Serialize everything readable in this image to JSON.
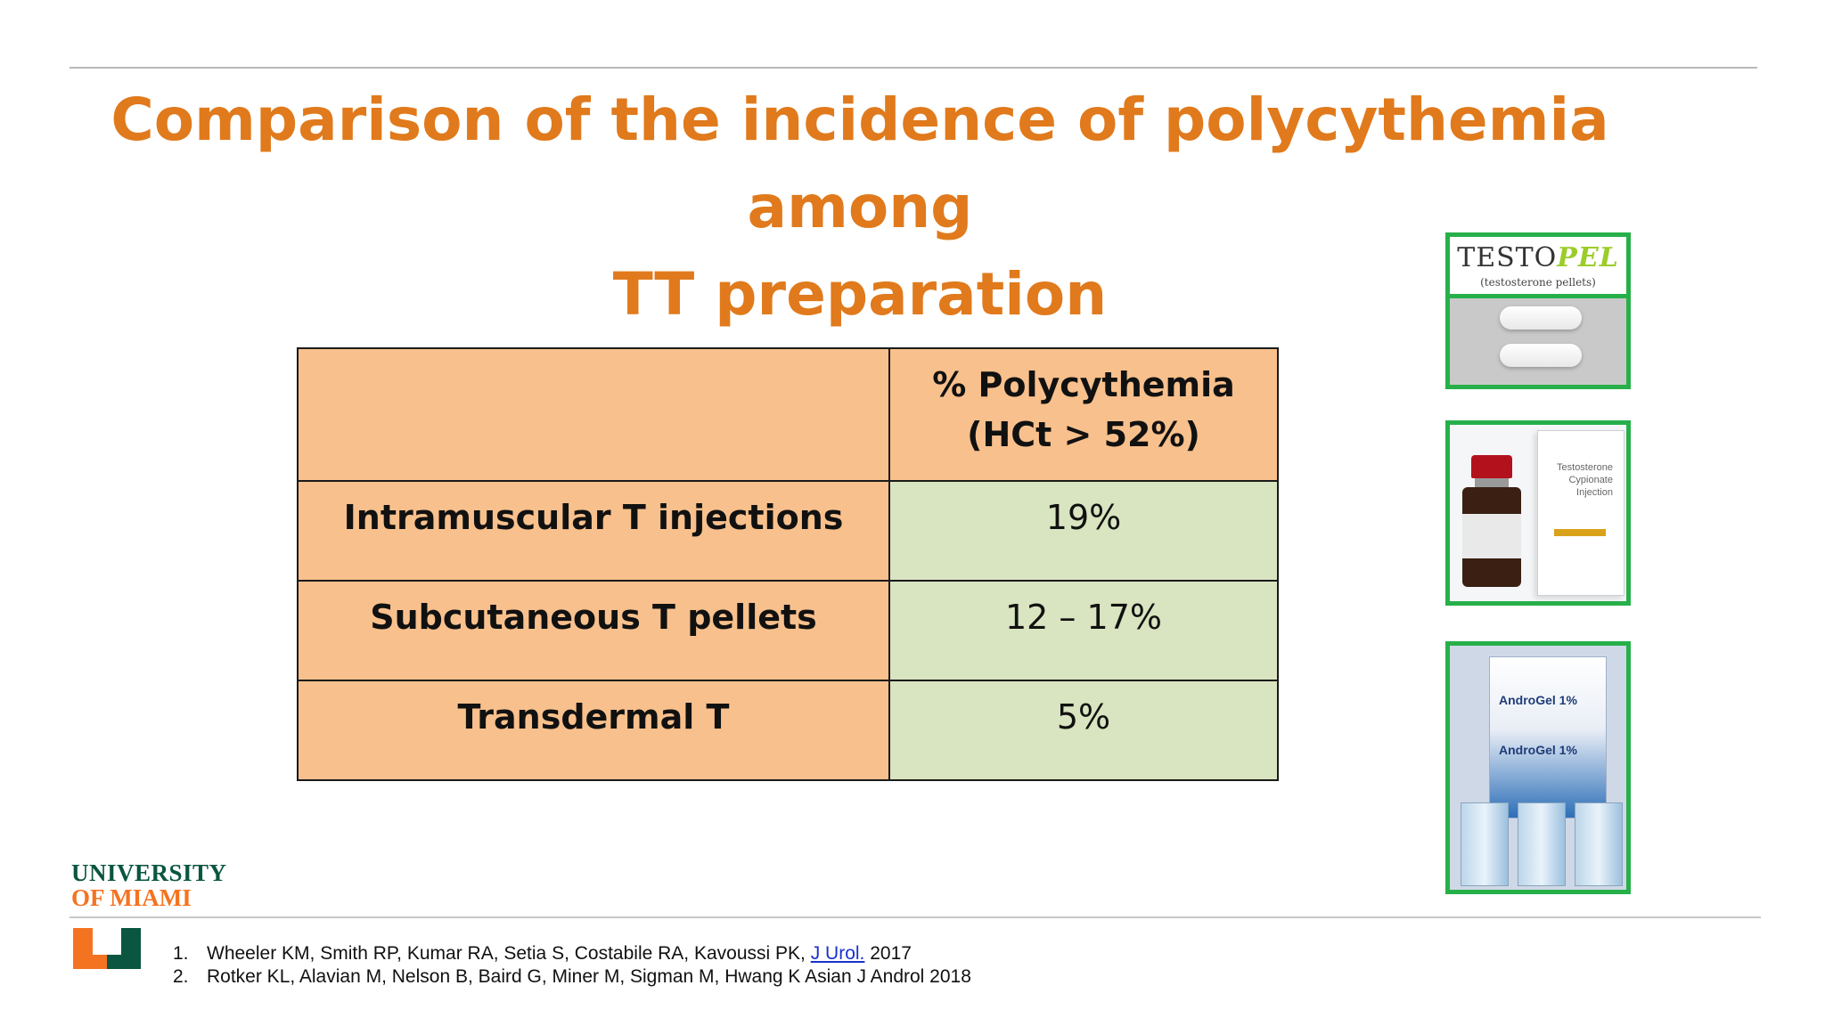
{
  "slide": {
    "title_line1": "Comparison of the incidence of polycythemia among",
    "title_line2": "TT preparation"
  },
  "table": {
    "header_value_line1": "% Polycythemia",
    "header_value_line2": "(HCt > 52%)",
    "rows": [
      {
        "label": "Intramuscular T injections",
        "value": "19%"
      },
      {
        "label": "Subcutaneous T pellets",
        "value": "12 – 17%"
      },
      {
        "label": "Transdermal T",
        "value": "5%"
      }
    ]
  },
  "products": {
    "testopel_brand_a": "TESTO",
    "testopel_brand_b": "PEL",
    "testopel_sub": "(testosterone pellets)",
    "cypionate_box_text": "Testosterone Cypionate Injection",
    "androgel_name": "AndroGel 1%"
  },
  "logo": {
    "line1": "UNIVERSITY",
    "line2": "OF MIAMI",
    "primary_color": "#0a5640",
    "accent_color": "#f47321"
  },
  "references": [
    {
      "num": "1.",
      "text_before": "Wheeler KM, Smith RP, Kumar RA, Setia S, Costabile RA, Kavoussi PK, ",
      "link": "J Urol.",
      "text_after": " 2017"
    },
    {
      "num": "2.",
      "text_before": "Rotker KL, Alavian M, Nelson B, Baird G, Miner M, Sigman M, Hwang K Asian J Androl 2018",
      "link": "",
      "text_after": ""
    }
  ],
  "colors": {
    "title": "#e07a1c",
    "table_label_fill": "#f8c08c",
    "table_value_fill": "#d9e4c0",
    "product_frame": "#27b04a"
  }
}
